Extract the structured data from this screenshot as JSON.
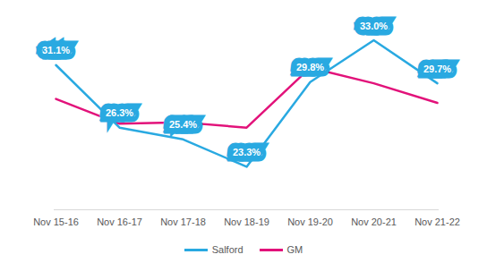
{
  "chart_data": {
    "type": "line",
    "categories": [
      "Nov 15-16",
      "Nov 16-17",
      "Nov 17-18",
      "Nov 18-19",
      "Nov 19-20",
      "Nov 20-21",
      "Nov 21-22"
    ],
    "series": [
      {
        "name": "Salford",
        "color": "#29a9e1",
        "values": [
          31.1,
          26.3,
          25.4,
          23.3,
          29.8,
          33.0,
          29.7
        ],
        "value_labels": [
          "31.1%",
          "26.3%",
          "25.4%",
          "23.3%",
          "29.8%",
          "33.0%",
          "29.7%"
        ],
        "data_labels": true
      },
      {
        "name": "GM",
        "color": "#e2127a",
        "values": [
          28.5,
          26.6,
          26.7,
          26.3,
          30.9,
          29.7,
          28.2
        ]
      }
    ],
    "ylim": [
      20,
      34
    ],
    "tick_labels": "x",
    "legend": "bottom"
  }
}
